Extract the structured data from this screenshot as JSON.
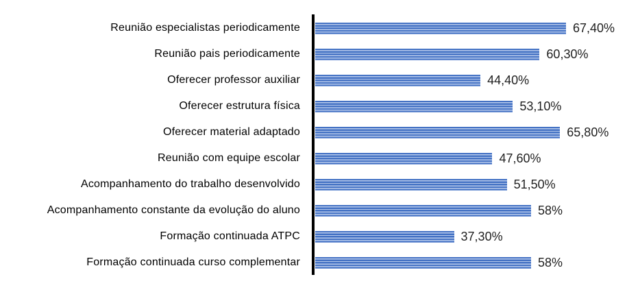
{
  "chart_data": {
    "type": "bar",
    "orientation": "horizontal",
    "title": "",
    "xlabel": "",
    "ylabel": "",
    "grid": false,
    "legend": false,
    "xlim": [
      0,
      84
    ],
    "categories": [
      "Reunião especialistas periodicamente",
      "Reunião pais periodicamente",
      "Oferecer professor auxiliar",
      "Oferecer estrutura física",
      "Oferecer material adaptado",
      "Reunião com equipe escolar",
      "Acompanhamento do trabalho desenvolvido",
      "Acompanhamento constante da evolução do aluno",
      "Formação continuada ATPC",
      "Formação continuada curso complementar"
    ],
    "values": [
      67.4,
      60.3,
      44.4,
      53.1,
      65.8,
      47.6,
      51.5,
      58,
      37.3,
      58
    ],
    "value_labels": [
      "67,40%",
      "60,30%",
      "44,40%",
      "53,10%",
      "65,80%",
      "47,60%",
      "51,50%",
      "58%",
      "37,30%",
      "58%"
    ],
    "colors": {
      "bar_stripe_dark": "#4472C4",
      "bar_stripe_light": "#b9cbec",
      "axis": "#000000",
      "category_text": "#000000",
      "value_text": "#1f1f1f"
    }
  }
}
